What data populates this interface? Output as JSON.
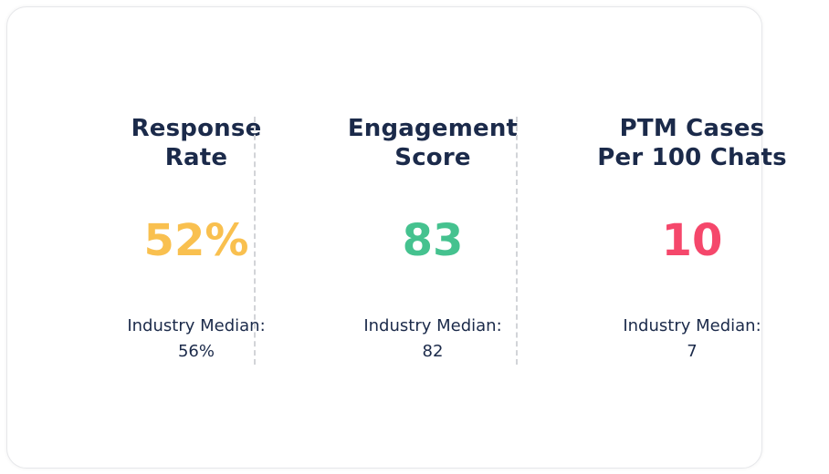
{
  "colors": {
    "title": "#1b2a4a",
    "response_rate": "#f9c04f",
    "engagement_score": "#45c28f",
    "ptm_cases": "#f5476b"
  },
  "metrics": [
    {
      "title_line1": "Response",
      "title_line2": "Rate",
      "value": "52%",
      "median_label": "Industry Median:",
      "median_value": "56%"
    },
    {
      "title_line1": "Engagement",
      "title_line2": "Score",
      "value": "83",
      "median_label": "Industry Median:",
      "median_value": "82"
    },
    {
      "title_line1": "PTM Cases",
      "title_line2": "Per 100 Chats",
      "value": "10",
      "median_label": "Industry Median:",
      "median_value": "7"
    }
  ]
}
